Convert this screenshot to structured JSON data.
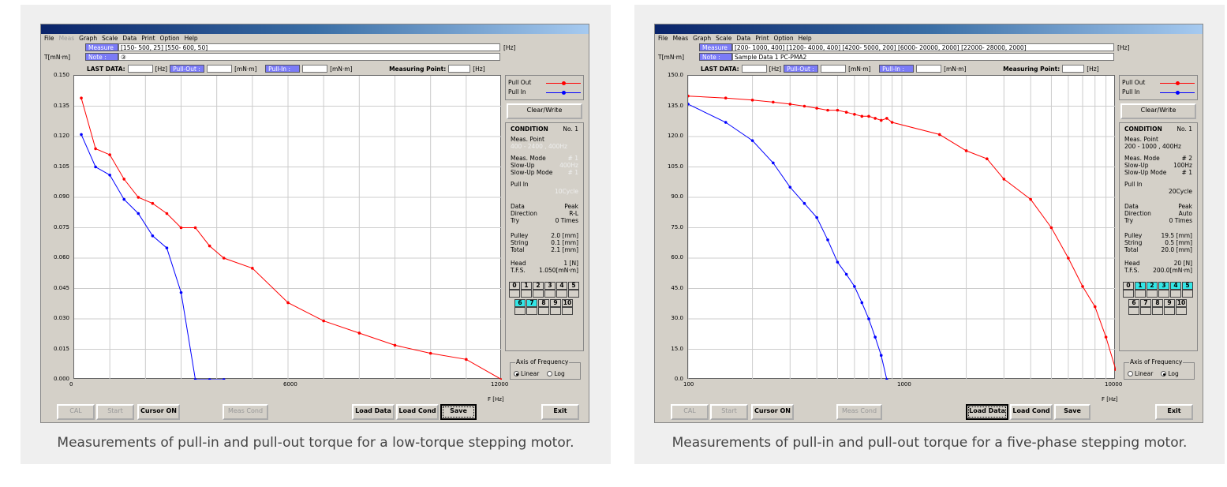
{
  "left": {
    "caption": "Measurements of pull-in and pull-out torque for a low-torque stepping motor.",
    "menu": [
      "File",
      "Meas",
      "Graph",
      "Scale",
      "Data",
      "Print",
      "Option",
      "Help"
    ],
    "menu_disabled": [
      false,
      true,
      false,
      false,
      false,
      false,
      false,
      false
    ],
    "measure_label": "Measure :",
    "measure_value": "[150- 500, 25] [550- 600, 50]",
    "unit_hz": "[Hz]",
    "ylabel": "T[mN·m]",
    "note_label": "Note :",
    "note_value": "③",
    "last_data": "LAST DATA:",
    "hz": "[Hz]",
    "pull_out_btn": "Pull-Out :",
    "mnm": "[mN·m]",
    "pull_in_btn": "Pull-In :",
    "measuring_point": "Measuring Point:",
    "yticks": [
      "0.150",
      "0.135",
      "0.120",
      "0.105",
      "0.090",
      "0.075",
      "0.060",
      "0.045",
      "0.030",
      "0.015",
      "0.000"
    ],
    "xticks": [
      "0",
      "6000",
      "12000"
    ],
    "xunit": "F [Hz]",
    "legend": {
      "out": "Pull Out",
      "in": "Pull In"
    },
    "clear_write": "Clear/Write",
    "condition": {
      "title": "CONDITION",
      "no": "No. 1",
      "meas_point": "Meas. Point",
      "meas_point_val": "400 -  2400 ,    400Hz",
      "meas_mode": "Meas. Mode",
      "meas_mode_val": "# 1",
      "slow_up": "Slow-Up",
      "slow_up_val": "400Hz",
      "slow_up_mode": "Slow-Up Mode",
      "slow_up_mode_val": "# 1",
      "pull_in": "Pull In",
      "pull_in_val": "10Cycle",
      "data": "Data",
      "data_val": "Peak",
      "direction": "Direction",
      "direction_val": "R-L",
      "try": "Try",
      "try_val": "0 Times",
      "pulley": "Pulley",
      "pulley_val": "2.0 [mm]",
      "string": "String",
      "string_val": "0.1 [mm]",
      "total": "Total",
      "total_val": "2.1 [mm]",
      "head": "Head",
      "head_val": "1 [N]",
      "tfs": "T.F.S.",
      "tfs_val": "1.050[mN·m]"
    },
    "nums_row1": [
      "0",
      "1",
      "2",
      "3",
      "4",
      "5"
    ],
    "nums_row2": [
      "6",
      "7",
      "8",
      "9",
      "10"
    ],
    "nums_on": [
      "6",
      "7"
    ],
    "axis_freq": "Axis of Frequency",
    "linear": "Linear",
    "log": "Log",
    "scale_selected": "Linear",
    "buttons": {
      "cal": "CAL",
      "start": "Start",
      "cursor": "Cursor ON",
      "meas_cond": "Meas Cond",
      "load_data": "Load Data",
      "load_cond": "Load Cond",
      "save": "Save",
      "exit": "Exit"
    },
    "focused_button": "save",
    "chart_data": {
      "type": "line",
      "xscale": "linear",
      "xlim": [
        0,
        12000
      ],
      "ylim": [
        0,
        0.15
      ],
      "xlabel": "F [Hz]",
      "ylabel": "T[mN·m]",
      "series": [
        {
          "name": "Pull Out",
          "color": "#ff0000",
          "x": [
            200,
            600,
            1000,
            1400,
            1800,
            2200,
            2600,
            3000,
            3400,
            3800,
            4200,
            5000,
            6000,
            7000,
            8000,
            9000,
            10000,
            11000,
            12000
          ],
          "y": [
            0.139,
            0.114,
            0.111,
            0.099,
            0.09,
            0.087,
            0.082,
            0.075,
            0.075,
            0.066,
            0.06,
            0.055,
            0.038,
            0.029,
            0.023,
            0.017,
            0.013,
            0.01,
            0.0
          ]
        },
        {
          "name": "Pull In",
          "color": "#0000ff",
          "x": [
            200,
            600,
            1000,
            1400,
            1800,
            2200,
            2600,
            3000,
            3400,
            3800,
            4200
          ],
          "y": [
            0.121,
            0.105,
            0.101,
            0.089,
            0.082,
            0.071,
            0.065,
            0.043,
            0.0,
            0.0,
            0.0
          ]
        }
      ]
    }
  },
  "right": {
    "caption": "Measurements of pull-in and pull-out torque for a five-phase stepping motor.",
    "menu": [
      "File",
      "Meas",
      "Graph",
      "Scale",
      "Data",
      "Print",
      "Option",
      "Help"
    ],
    "menu_disabled": [
      false,
      false,
      false,
      false,
      false,
      false,
      false,
      false
    ],
    "measure_label": "Measure :",
    "measure_value": "[200- 1000, 400] [1200- 4000, 400] [4200- 5000, 200] [6000- 20000, 2000] [22000- 28000, 2000]",
    "unit_hz": "[Hz]",
    "ylabel": "T[mN·m]",
    "note_label": "Note :",
    "note_value": "Sample Data 1    PC-PMA2",
    "last_data": "LAST DATA:",
    "hz": "[Hz]",
    "pull_out_btn": "Pull-Out :",
    "mnm": "[mN·m]",
    "pull_in_btn": "Pull-In :",
    "measuring_point": "Measuring Point:",
    "yticks": [
      "150.0",
      "135.0",
      "120.0",
      "105.0",
      "90.0",
      "75.0",
      "60.0",
      "45.0",
      "30.0",
      "15.0",
      "0.0"
    ],
    "xticks": [
      "100",
      "1000",
      "10000"
    ],
    "xunit": "F [Hz]",
    "legend": {
      "out": "Pull Out",
      "in": "Pull In"
    },
    "clear_write": "Clear/Write",
    "condition": {
      "title": "CONDITION",
      "no": "No. 1",
      "meas_point": "Meas. Point",
      "meas_point_val": "200 -  1000 ,    400Hz",
      "meas_mode": "Meas. Mode",
      "meas_mode_val": "# 2",
      "slow_up": "Slow-Up",
      "slow_up_val": "100Hz",
      "slow_up_mode": "Slow-Up Mode",
      "slow_up_mode_val": "# 1",
      "pull_in": "Pull In",
      "pull_in_val": "20Cycle",
      "data": "Data",
      "data_val": "Peak",
      "direction": "Direction",
      "direction_val": "Auto",
      "try": "Try",
      "try_val": "0 Times",
      "pulley": "Pulley",
      "pulley_val": "19.5 [mm]",
      "string": "String",
      "string_val": "0.5 [mm]",
      "total": "Total",
      "total_val": "20.0 [mm]",
      "head": "Head",
      "head_val": "20 [N]",
      "tfs": "T.F.S.",
      "tfs_val": "200.0[mN·m]"
    },
    "nums_row1": [
      "0",
      "1",
      "2",
      "3",
      "4",
      "5"
    ],
    "nums_row2": [
      "6",
      "7",
      "8",
      "9",
      "10"
    ],
    "nums_on": [
      "1",
      "2",
      "3",
      "4",
      "5"
    ],
    "axis_freq": "Axis of Frequency",
    "linear": "Linear",
    "log": "Log",
    "scale_selected": "Log",
    "buttons": {
      "cal": "CAL",
      "start": "Start",
      "cursor": "Cursor ON",
      "meas_cond": "Meas Cond",
      "load_data": "Load Data",
      "load_cond": "Load Cond",
      "save": "Save",
      "exit": "Exit"
    },
    "focused_button": "load_data",
    "chart_data": {
      "type": "line",
      "xscale": "log",
      "xlim": [
        100,
        10000
      ],
      "ylim": [
        0,
        150
      ],
      "xlabel": "F [Hz]",
      "ylabel": "T[mN·m]",
      "series": [
        {
          "name": "Pull Out",
          "color": "#ff0000",
          "x": [
            100,
            150,
            200,
            250,
            300,
            350,
            400,
            450,
            500,
            550,
            600,
            650,
            700,
            750,
            800,
            850,
            900,
            1500,
            2000,
            2500,
            3000,
            4000,
            5000,
            6000,
            7000,
            8000,
            9000,
            10000
          ],
          "y": [
            140,
            139,
            138,
            137,
            136,
            135,
            134,
            133,
            133,
            132,
            131,
            130,
            130,
            129,
            128,
            129,
            127,
            121,
            113,
            109,
            99,
            89,
            75,
            60,
            46,
            36,
            21,
            5
          ]
        },
        {
          "name": "Pull In",
          "color": "#0000ff",
          "x": [
            100,
            150,
            200,
            250,
            300,
            350,
            400,
            450,
            500,
            550,
            600,
            650,
            700,
            750,
            800,
            850
          ],
          "y": [
            136,
            127,
            118,
            107,
            95,
            87,
            80,
            69,
            58,
            52,
            46,
            38,
            30,
            21,
            12,
            0
          ]
        }
      ]
    }
  }
}
